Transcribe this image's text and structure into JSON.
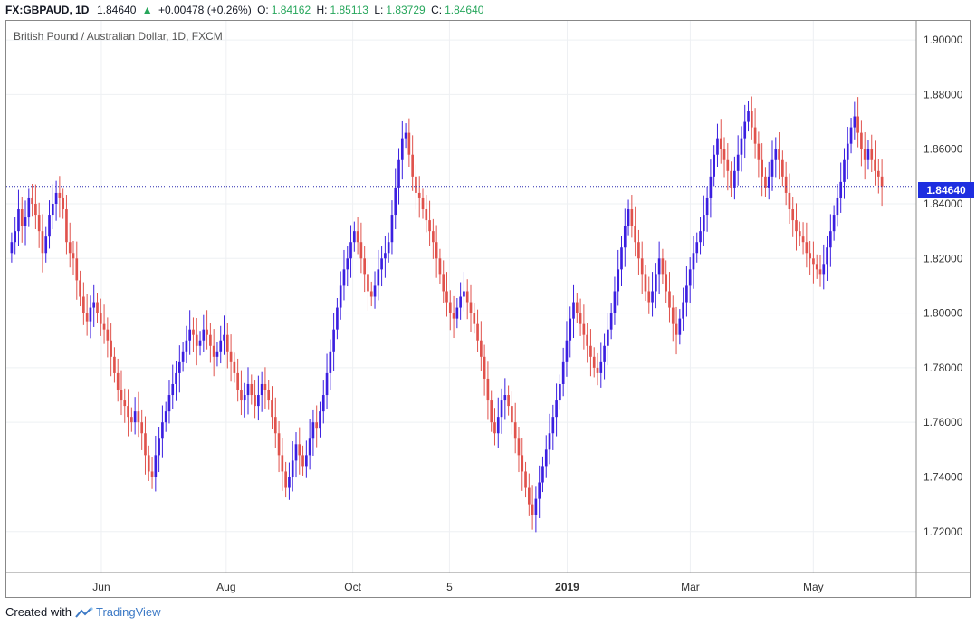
{
  "header": {
    "symbol": "FX:GBPAUD, 1D",
    "last": "1.84640",
    "change_arrow": "▲",
    "change": "+0.00478 (+0.26%)",
    "o_label": "O:",
    "o_val": "1.84162",
    "h_label": "H:",
    "h_val": "1.85113",
    "l_label": "L:",
    "l_val": "1.83729",
    "c_label": "C:",
    "c_val": "1.84640"
  },
  "pair_title": "British Pound / Australian Dollar, 1D, FXCM",
  "footer": {
    "created_with": "Created with",
    "brand": "TradingView"
  },
  "last_price_label": "1.84640",
  "colors": {
    "up": "#3b1fe0",
    "down": "#e0524c",
    "price_line": "#2a2ab0",
    "accent": "#1e2ee0"
  },
  "chart_data": {
    "type": "candlestick",
    "title": "British Pound / Australian Dollar, 1D, FXCM",
    "ylim": [
      1.705,
      1.907
    ],
    "y_ticks": [
      "1.72000",
      "1.74000",
      "1.76000",
      "1.78000",
      "1.80000",
      "1.82000",
      "1.84000",
      "1.86000",
      "1.88000",
      "1.90000"
    ],
    "y_tick_values": [
      1.72,
      1.74,
      1.76,
      1.78,
      1.8,
      1.82,
      1.84,
      1.86,
      1.88,
      1.9
    ],
    "x_ticks": [
      "Jun",
      "Aug",
      "Oct",
      "5",
      "2019",
      "Mar",
      "May"
    ],
    "x_tick_days": [
      52,
      123,
      195,
      250,
      317,
      387,
      457
    ],
    "total_days": 497,
    "last_price": 1.8464,
    "grid": true,
    "closes": [
      1.826,
      1.83,
      1.838,
      1.832,
      1.835,
      1.842,
      1.84,
      1.836,
      1.83,
      1.822,
      1.828,
      1.836,
      1.84,
      1.844,
      1.842,
      1.838,
      1.826,
      1.822,
      1.82,
      1.812,
      1.806,
      1.8,
      1.797,
      1.802,
      1.804,
      1.8,
      1.796,
      1.794,
      1.79,
      1.784,
      1.778,
      1.772,
      1.768,
      1.766,
      1.762,
      1.76,
      1.764,
      1.76,
      1.756,
      1.748,
      1.742,
      1.74,
      1.748,
      1.754,
      1.76,
      1.764,
      1.77,
      1.774,
      1.778,
      1.782,
      1.786,
      1.79,
      1.794,
      1.792,
      1.788,
      1.79,
      1.794,
      1.792,
      1.788,
      1.784,
      1.786,
      1.79,
      1.792,
      1.786,
      1.782,
      1.778,
      1.772,
      1.768,
      1.77,
      1.774,
      1.77,
      1.766,
      1.77,
      1.774,
      1.772,
      1.768,
      1.762,
      1.756,
      1.748,
      1.742,
      1.736,
      1.74,
      1.746,
      1.752,
      1.748,
      1.744,
      1.748,
      1.754,
      1.76,
      1.758,
      1.764,
      1.77,
      1.778,
      1.786,
      1.794,
      1.802,
      1.81,
      1.816,
      1.82,
      1.826,
      1.83,
      1.826,
      1.82,
      1.814,
      1.808,
      1.806,
      1.81,
      1.816,
      1.82,
      1.822,
      1.826,
      1.836,
      1.846,
      1.856,
      1.864,
      1.866,
      1.858,
      1.85,
      1.844,
      1.842,
      1.838,
      1.834,
      1.83,
      1.826,
      1.82,
      1.814,
      1.808,
      1.804,
      1.8,
      1.798,
      1.802,
      1.806,
      1.808,
      1.804,
      1.8,
      1.796,
      1.79,
      1.784,
      1.776,
      1.768,
      1.76,
      1.756,
      1.762,
      1.768,
      1.77,
      1.766,
      1.76,
      1.754,
      1.748,
      1.742,
      1.736,
      1.73,
      1.726,
      1.732,
      1.738,
      1.744,
      1.75,
      1.756,
      1.762,
      1.768,
      1.774,
      1.782,
      1.79,
      1.798,
      1.804,
      1.8,
      1.796,
      1.792,
      1.788,
      1.784,
      1.78,
      1.778,
      1.782,
      1.788,
      1.794,
      1.8,
      1.808,
      1.816,
      1.824,
      1.832,
      1.838,
      1.832,
      1.826,
      1.82,
      1.814,
      1.808,
      1.804,
      1.808,
      1.814,
      1.82,
      1.814,
      1.808,
      1.802,
      1.796,
      1.792,
      1.798,
      1.804,
      1.81,
      1.816,
      1.822,
      1.826,
      1.83,
      1.836,
      1.842,
      1.85,
      1.858,
      1.864,
      1.86,
      1.856,
      1.852,
      1.846,
      1.852,
      1.858,
      1.864,
      1.87,
      1.874,
      1.868,
      1.862,
      1.856,
      1.85,
      1.846,
      1.85,
      1.856,
      1.86,
      1.856,
      1.85,
      1.844,
      1.838,
      1.834,
      1.83,
      1.828,
      1.826,
      1.822,
      1.82,
      1.818,
      1.816,
      1.814,
      1.818,
      1.824,
      1.83,
      1.836,
      1.842,
      1.848,
      1.856,
      1.862,
      1.868,
      1.872,
      1.866,
      1.86,
      1.856,
      1.86,
      1.856,
      1.852,
      1.85,
      1.8464
    ],
    "opens": [
      1.822,
      1.826,
      1.83,
      1.838,
      1.832,
      1.835,
      1.842,
      1.84,
      1.836,
      1.83,
      1.822,
      1.828,
      1.836,
      1.84,
      1.844,
      1.842,
      1.838,
      1.826,
      1.822,
      1.82,
      1.812,
      1.806,
      1.8,
      1.797,
      1.802,
      1.804,
      1.8,
      1.796,
      1.794,
      1.79,
      1.784,
      1.778,
      1.772,
      1.768,
      1.766,
      1.762,
      1.76,
      1.764,
      1.76,
      1.756,
      1.748,
      1.742,
      1.74,
      1.748,
      1.754,
      1.76,
      1.764,
      1.77,
      1.774,
      1.778,
      1.782,
      1.786,
      1.79,
      1.794,
      1.792,
      1.788,
      1.79,
      1.794,
      1.792,
      1.788,
      1.784,
      1.786,
      1.79,
      1.792,
      1.786,
      1.782,
      1.778,
      1.772,
      1.768,
      1.77,
      1.774,
      1.77,
      1.766,
      1.77,
      1.774,
      1.772,
      1.768,
      1.762,
      1.756,
      1.748,
      1.742,
      1.736,
      1.74,
      1.746,
      1.752,
      1.748,
      1.744,
      1.748,
      1.754,
      1.76,
      1.758,
      1.764,
      1.77,
      1.778,
      1.786,
      1.794,
      1.802,
      1.81,
      1.816,
      1.82,
      1.826,
      1.83,
      1.826,
      1.82,
      1.814,
      1.808,
      1.806,
      1.81,
      1.816,
      1.82,
      1.822,
      1.826,
      1.836,
      1.846,
      1.856,
      1.864,
      1.866,
      1.858,
      1.85,
      1.844,
      1.842,
      1.838,
      1.834,
      1.83,
      1.826,
      1.82,
      1.814,
      1.808,
      1.804,
      1.8,
      1.798,
      1.802,
      1.806,
      1.808,
      1.804,
      1.8,
      1.796,
      1.79,
      1.784,
      1.776,
      1.768,
      1.76,
      1.756,
      1.762,
      1.768,
      1.77,
      1.766,
      1.76,
      1.754,
      1.748,
      1.742,
      1.736,
      1.73,
      1.726,
      1.732,
      1.738,
      1.744,
      1.75,
      1.756,
      1.762,
      1.768,
      1.774,
      1.782,
      1.79,
      1.798,
      1.804,
      1.8,
      1.796,
      1.792,
      1.788,
      1.784,
      1.78,
      1.778,
      1.782,
      1.788,
      1.794,
      1.8,
      1.808,
      1.816,
      1.824,
      1.832,
      1.838,
      1.832,
      1.826,
      1.82,
      1.814,
      1.808,
      1.804,
      1.808,
      1.814,
      1.82,
      1.814,
      1.808,
      1.802,
      1.796,
      1.792,
      1.798,
      1.804,
      1.81,
      1.816,
      1.822,
      1.826,
      1.83,
      1.836,
      1.842,
      1.85,
      1.858,
      1.864,
      1.86,
      1.856,
      1.852,
      1.846,
      1.852,
      1.858,
      1.864,
      1.87,
      1.874,
      1.868,
      1.862,
      1.856,
      1.85,
      1.846,
      1.85,
      1.856,
      1.86,
      1.856,
      1.85,
      1.844,
      1.838,
      1.834,
      1.83,
      1.828,
      1.826,
      1.822,
      1.82,
      1.818,
      1.816,
      1.814,
      1.818,
      1.824,
      1.83,
      1.836,
      1.842,
      1.848,
      1.856,
      1.862,
      1.868,
      1.872,
      1.866,
      1.86,
      1.856,
      1.86,
      1.856,
      1.852,
      1.85,
      1.84162
    ]
  }
}
